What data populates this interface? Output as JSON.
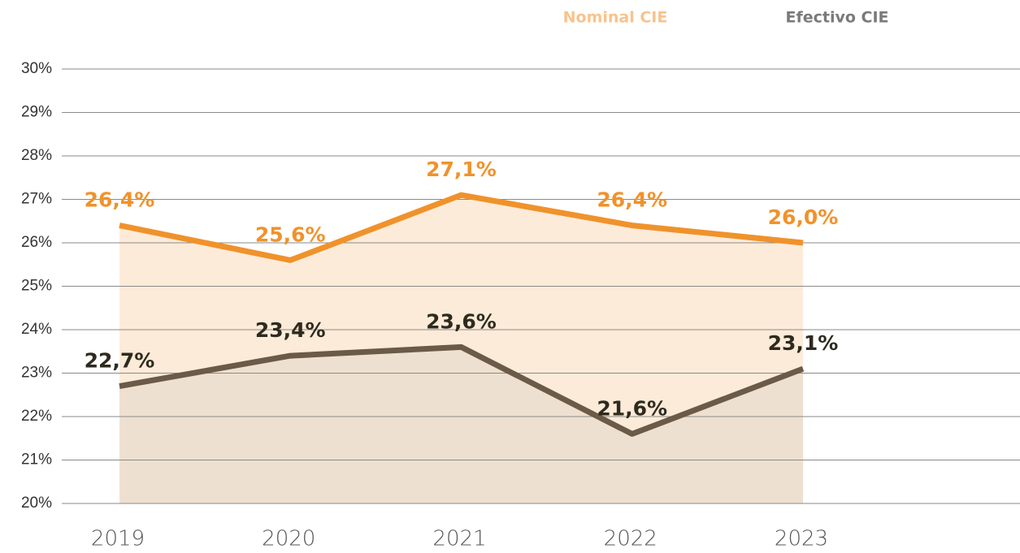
{
  "chart_data": {
    "type": "line",
    "categories": [
      "2019",
      "2020",
      "2021",
      "2022",
      "2023"
    ],
    "series": [
      {
        "name": "Nominal CIE",
        "color": "#f0922b",
        "area_color": "#fdebd9",
        "legend_color": "#f8c38c",
        "label_color": "#f0922b",
        "values": [
          26.4,
          25.6,
          27.1,
          26.4,
          26.0
        ],
        "value_labels": [
          "26,4%",
          "25,6%",
          "27,1%",
          "26,4%",
          "26,0%"
        ]
      },
      {
        "name": "Efectivo CIE",
        "color": "#6b5a47",
        "area_color": "#eee0d0",
        "legend_color": "#7a7a7a",
        "label_color": "#2e2a1e",
        "values": [
          22.7,
          23.4,
          23.6,
          21.6,
          23.1
        ],
        "value_labels": [
          "22,7%",
          "23,4%",
          "23,6%",
          "21,6%",
          "23,1%"
        ]
      }
    ],
    "ylim": [
      20,
      30
    ],
    "yticks": [
      {
        "value": 20,
        "label": "20%"
      },
      {
        "value": 21,
        "label": "21%"
      },
      {
        "value": 22,
        "label": "22%"
      },
      {
        "value": 23,
        "label": "23%"
      },
      {
        "value": 24,
        "label": "24%"
      },
      {
        "value": 25,
        "label": "25%"
      },
      {
        "value": 26,
        "label": "26%"
      },
      {
        "value": 27,
        "label": "27%"
      },
      {
        "value": 28,
        "label": "28%"
      },
      {
        "value": 29,
        "label": "29%"
      },
      {
        "value": 30,
        "label": "30%"
      }
    ],
    "grid": true,
    "legend": "top"
  }
}
